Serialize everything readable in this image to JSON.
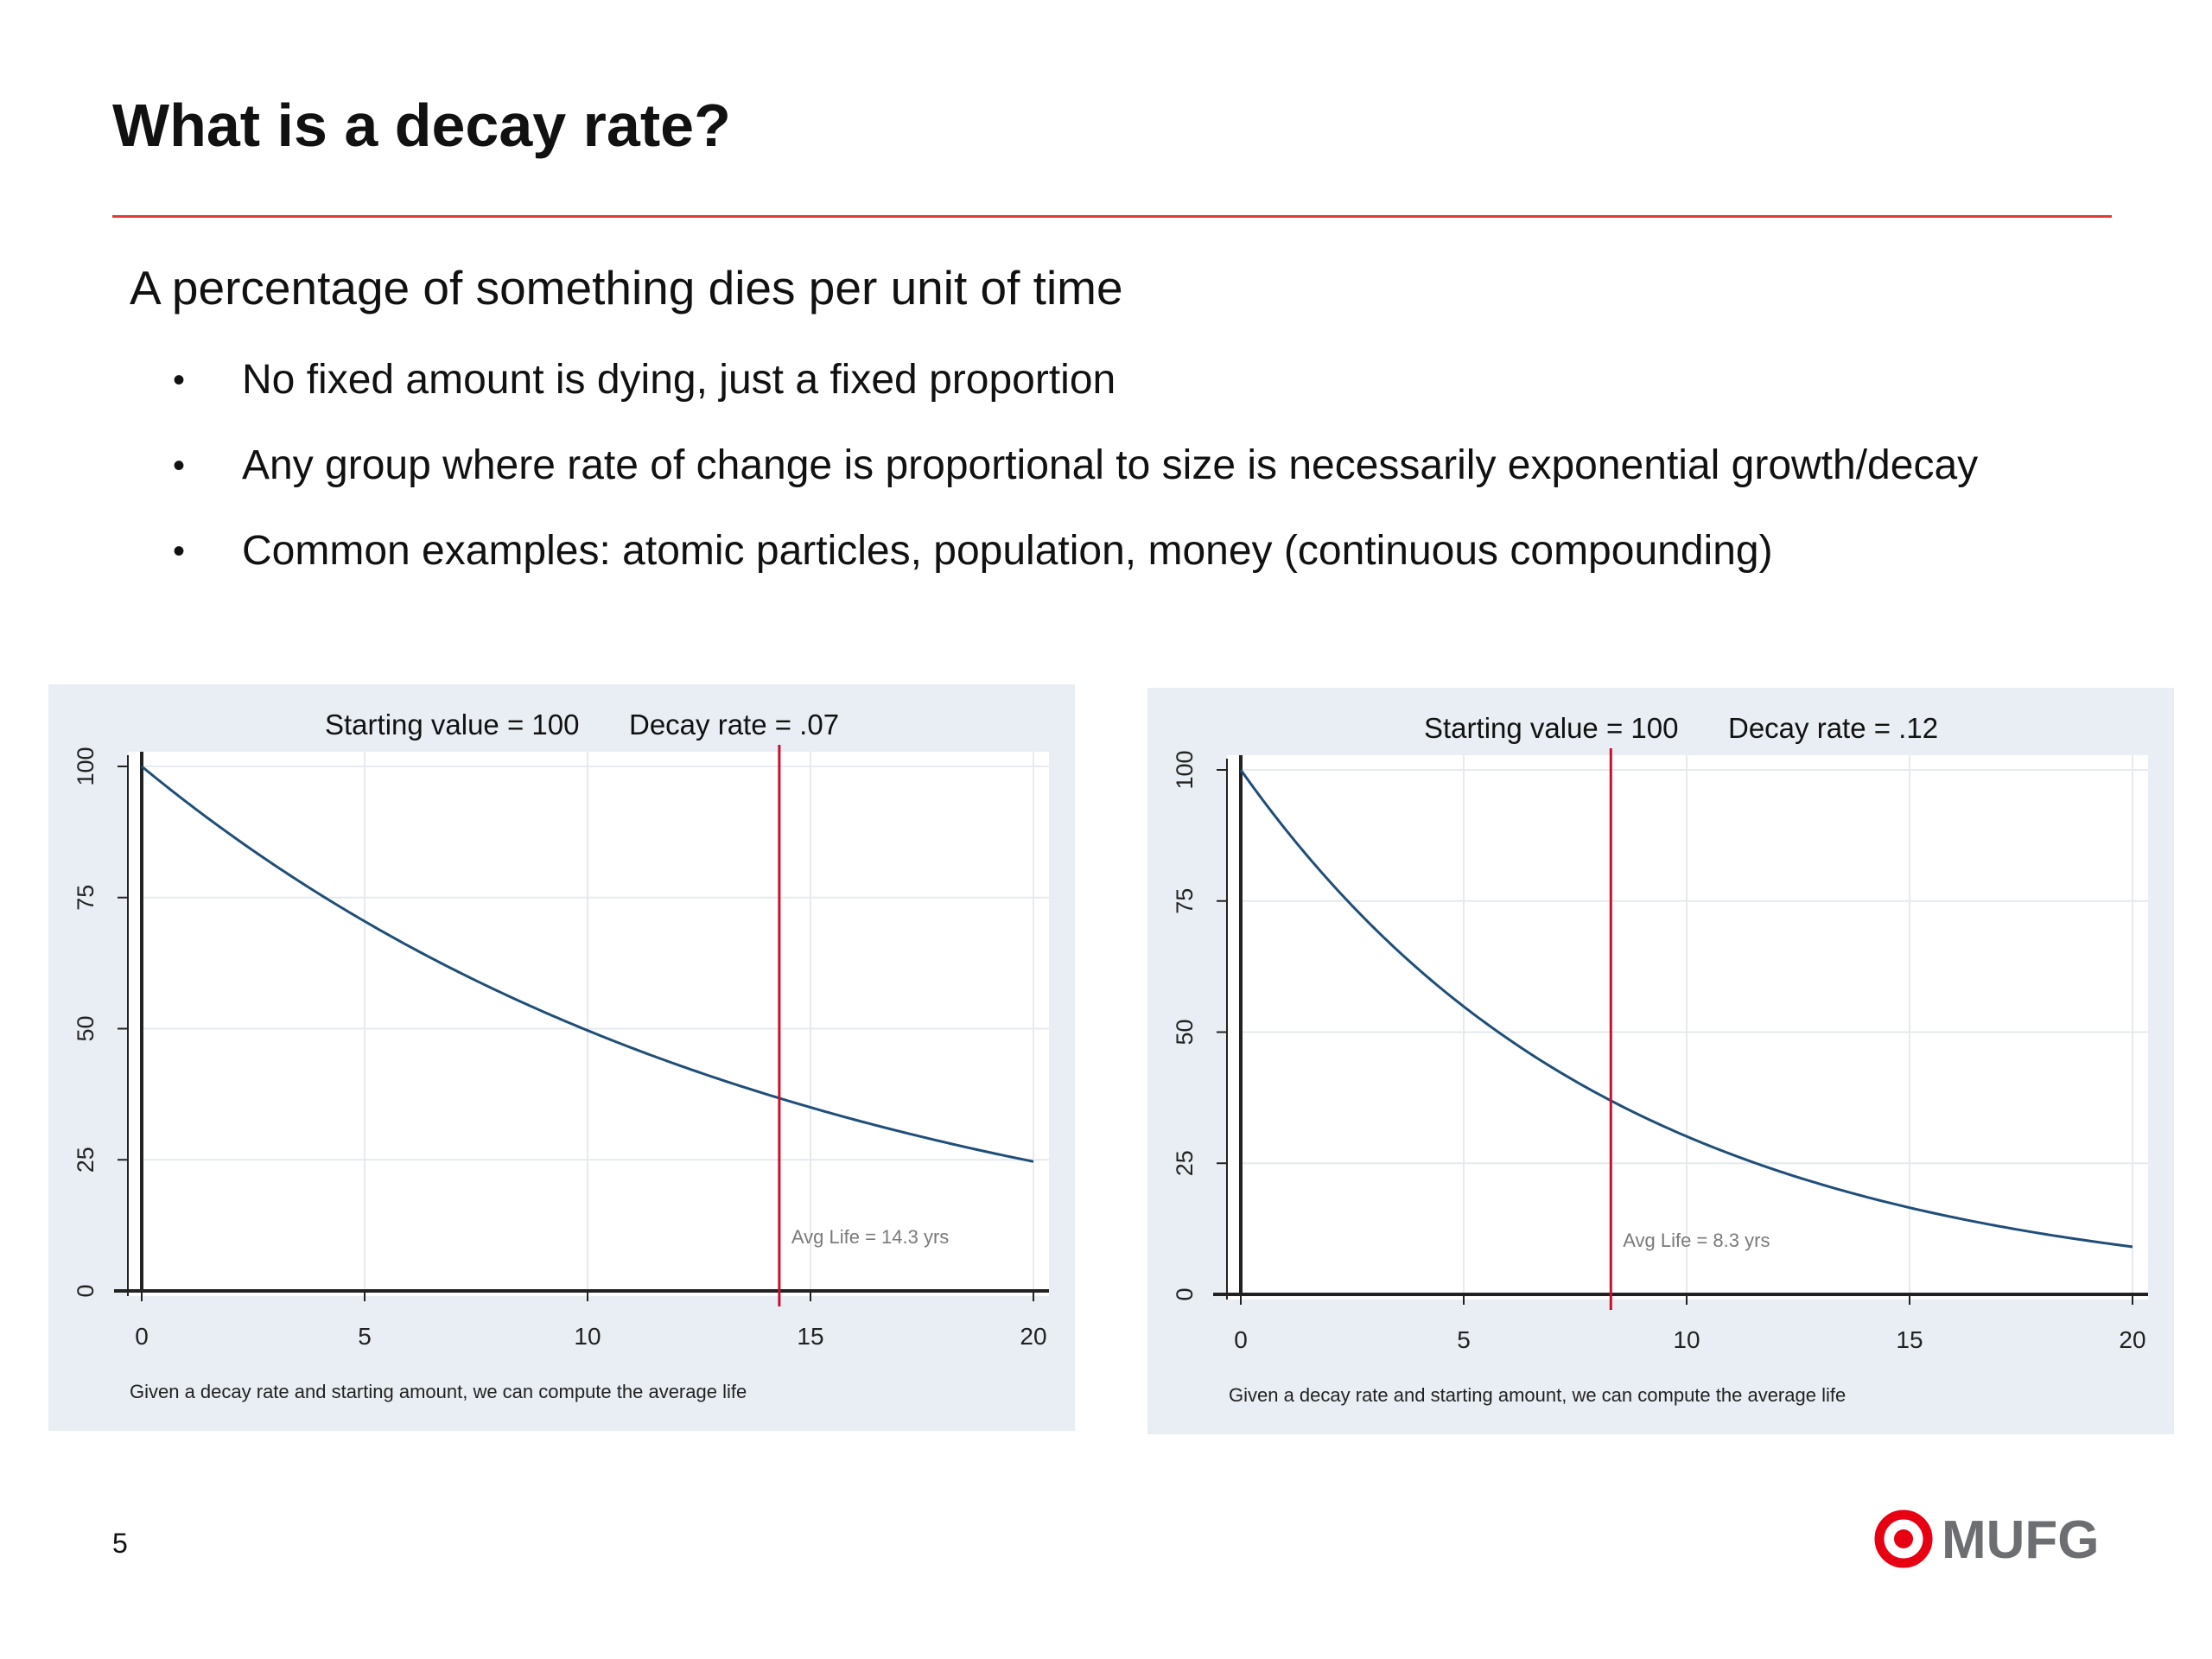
{
  "slide": {
    "title": "What is a decay rate?",
    "headline": "A percentage of something dies per unit of time",
    "bullets": [
      "No fixed amount is dying, just a fixed proportion",
      "Any group where rate of change is proportional to size is necessarily exponential growth/decay",
      "Common examples: atomic particles, population, money (continuous compounding)"
    ],
    "bullet_symbol": "•",
    "page_number": "5",
    "logo_text": "MUFG"
  },
  "colors": {
    "accent_red": "#e60012",
    "rule_red": "#e23a36",
    "panel_bg": "#e9eef4",
    "curve": "#1f4e79",
    "avg_line": "#c8102e",
    "axis": "#222222",
    "grid": "#e6eaee",
    "logo_gray": "#6d6e71"
  },
  "chart_data": [
    {
      "type": "line",
      "title": "Starting value = 100",
      "subtitle": "Decay rate = .07",
      "note": "Given a decay rate and starting amount, we can compute the average life",
      "starting_value": 100,
      "decay_rate": 0.07,
      "x": [
        0,
        1,
        2,
        3,
        4,
        5,
        6,
        7,
        8,
        9,
        10,
        11,
        12,
        13,
        14,
        15,
        16,
        17,
        18,
        19,
        20
      ],
      "series": [
        {
          "values": [
            100,
            93.24,
            86.94,
            81.06,
            75.58,
            70.47,
            65.7,
            61.26,
            57.12,
            53.26,
            49.66,
            46.3,
            43.17,
            40.25,
            37.53,
            34.99,
            32.62,
            30.42,
            28.36,
            26.44,
            24.66
          ]
        }
      ],
      "avg_life": {
        "x": 14.3,
        "label": "Avg Life = 14.3 yrs"
      },
      "xlim": [
        0,
        20
      ],
      "ylim": [
        0,
        100
      ],
      "x_ticks": [
        "0",
        "5",
        "10",
        "15",
        "20"
      ],
      "y_ticks": [
        "0",
        "25",
        "50",
        "75",
        "100"
      ],
      "grid": true
    },
    {
      "type": "line",
      "title": "Starting value = 100",
      "subtitle": "Decay rate = .12",
      "note": "Given a decay rate and starting amount, we can compute the average life",
      "starting_value": 100,
      "decay_rate": 0.12,
      "x": [
        0,
        1,
        2,
        3,
        4,
        5,
        6,
        7,
        8,
        9,
        10,
        11,
        12,
        13,
        14,
        15,
        16,
        17,
        18,
        19,
        20
      ],
      "series": [
        {
          "values": [
            100,
            88.69,
            78.66,
            69.77,
            61.88,
            54.88,
            48.68,
            43.17,
            38.29,
            33.96,
            30.12,
            26.72,
            23.69,
            21.02,
            18.64,
            16.53,
            14.66,
            13.0,
            11.53,
            10.23,
            9.07
          ]
        }
      ],
      "avg_life": {
        "x": 8.3,
        "label": "Avg Life = 8.3 yrs"
      },
      "xlim": [
        0,
        20
      ],
      "ylim": [
        0,
        100
      ],
      "x_ticks": [
        "0",
        "5",
        "10",
        "15",
        "20"
      ],
      "y_ticks": [
        "0",
        "25",
        "50",
        "75",
        "100"
      ],
      "grid": true
    }
  ]
}
